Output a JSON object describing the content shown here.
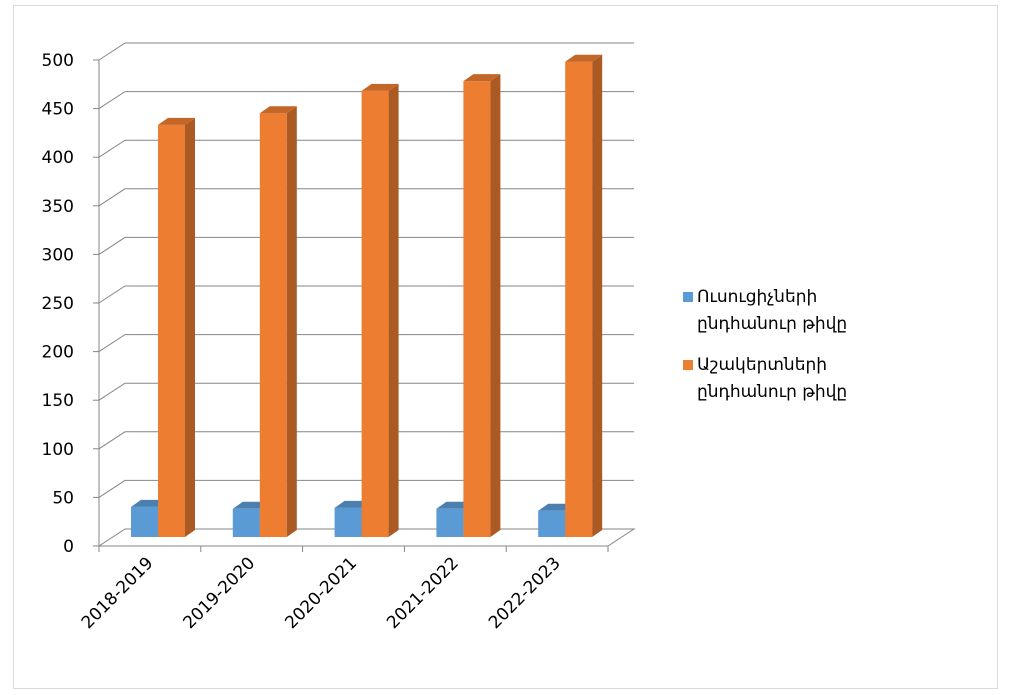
{
  "chart_data": {
    "type": "bar",
    "categories": [
      "2018-2019",
      "2019-2020",
      "2020-2021",
      "2021-2022",
      "2022-2023"
    ],
    "series": [
      {
        "name": "Ուսուցիչների ընդհանուր թիվը",
        "values": [
          31,
          29,
          30,
          29,
          27
        ],
        "color": "#5B9BD5"
      },
      {
        "name": "Աշակերտների ընդհանուր թիվը",
        "values": [
          424,
          436,
          459,
          469,
          489
        ],
        "color": "#ED7D31"
      }
    ],
    "y_ticks": [
      "0",
      "50",
      "100",
      "150",
      "200",
      "250",
      "300",
      "350",
      "400",
      "450",
      "500"
    ],
    "ylim": [
      0,
      500
    ],
    "grid": true,
    "style": "3d-column",
    "legend_position": "right"
  }
}
